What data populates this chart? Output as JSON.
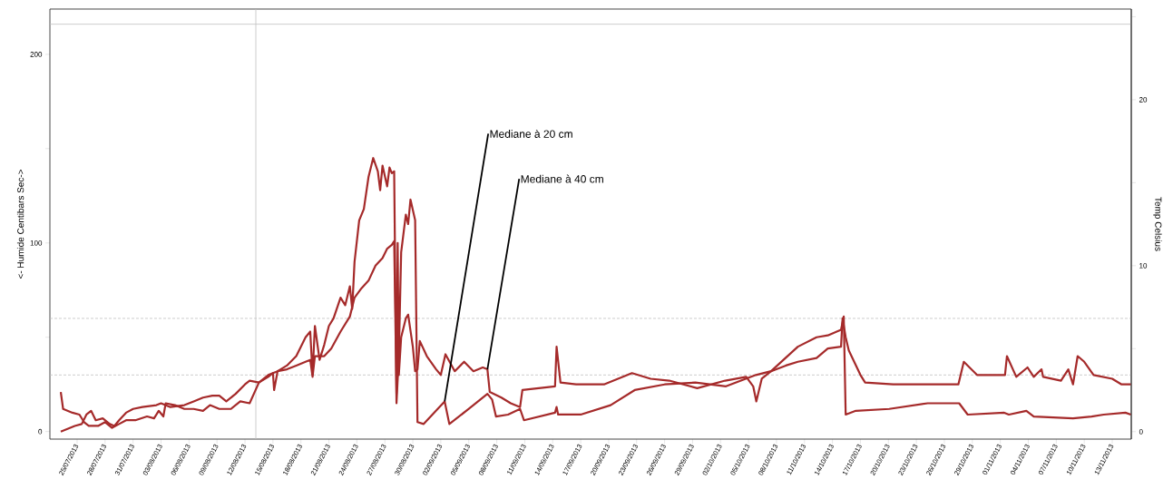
{
  "chart_data": {
    "type": "line",
    "ylabel": "<- Humide  Centibars  Sec->",
    "y2label": "Temp Celsius",
    "xlim": [
      "2013-07-22T02:00",
      "2013-11-15T01:00"
    ],
    "ylim": [
      -4,
      224
    ],
    "yticks": [
      0,
      {
        "value": 50,
        "label": null
      },
      100,
      {
        "value": 150,
        "label": null
      },
      200
    ],
    "y2lim": [
      -0.45,
      25.46
    ],
    "y2ticks": [
      0,
      {
        "value": 5,
        "label": null
      },
      10,
      {
        "value": 15,
        "label": null
      },
      20,
      {
        "value": 25,
        "label": null
      }
    ],
    "xticks": [
      {
        "value": "2013-07-25",
        "label": "25/07/2013"
      },
      {
        "value": "2013-07-28",
        "label": "28/07/2013"
      },
      {
        "value": "2013-07-31",
        "label": "31/07/2013"
      },
      {
        "value": "2013-08-03",
        "label": "03/08/2013"
      },
      {
        "value": "2013-08-06",
        "label": "06/08/2013"
      },
      {
        "value": "2013-08-09",
        "label": "09/08/2013"
      },
      {
        "value": "2013-08-12",
        "label": "12/08/2013"
      },
      {
        "value": "2013-08-15",
        "label": "15/08/2013"
      },
      {
        "value": "2013-08-18",
        "label": "18/08/2013"
      },
      {
        "value": "2013-08-21",
        "label": "21/08/2013"
      },
      {
        "value": "2013-08-24",
        "label": "24/08/2013"
      },
      {
        "value": "2013-08-27",
        "label": "27/08/2013"
      },
      {
        "value": "2013-08-30",
        "label": "30/08/2013"
      },
      {
        "value": "2013-09-02",
        "label": "02/09/2013"
      },
      {
        "value": "2013-09-05",
        "label": "05/09/2013"
      },
      {
        "value": "2013-09-08",
        "label": "08/09/2013"
      },
      {
        "value": "2013-09-11",
        "label": "11/09/2013"
      },
      {
        "value": "2013-09-14",
        "label": "14/09/2013"
      },
      {
        "value": "2013-09-17",
        "label": "17/09/2013"
      },
      {
        "value": "2013-09-20",
        "label": "20/09/2013"
      },
      {
        "value": "2013-09-23",
        "label": "23/09/2013"
      },
      {
        "value": "2013-09-26",
        "label": "26/09/2013"
      },
      {
        "value": "2013-09-29",
        "label": "29/09/2013"
      },
      {
        "value": "2013-10-02",
        "label": "02/10/2013"
      },
      {
        "value": "2013-10-05",
        "label": "05/10/2013"
      },
      {
        "value": "2013-10-08",
        "label": "08/10/2013"
      },
      {
        "value": "2013-10-11",
        "label": "11/10/2013"
      },
      {
        "value": "2013-10-14",
        "label": "14/10/2013"
      },
      {
        "value": "2013-10-17",
        "label": "17/10/2013"
      },
      {
        "value": "2013-10-20",
        "label": "20/10/2013"
      },
      {
        "value": "2013-10-23",
        "label": "23/10/2013"
      },
      {
        "value": "2013-10-26",
        "label": "26/10/2013"
      },
      {
        "value": "2013-10-29",
        "label": "29/10/2013"
      },
      {
        "value": "2013-11-01",
        "label": "01/11/2013"
      },
      {
        "value": "2013-11-04",
        "label": "04/11/2013"
      },
      {
        "value": "2013-11-07",
        "label": "07/11/2013"
      },
      {
        "value": "2013-11-10",
        "label": "10/11/2013"
      },
      {
        "value": "2013-11-13",
        "label": "13/11/2013"
      }
    ],
    "series": [
      {
        "color": "#a52a2a",
        "x": [
          "2013-07-23T06:00",
          "2013-07-24T18:00",
          "2013-07-25T12:00",
          "2013-07-26T00:00",
          "2013-07-26T12:00",
          "2013-07-27T00:00",
          "2013-07-27T18:00",
          "2013-07-28T12:00",
          "2013-07-29T00:00",
          "2013-07-29T12:00",
          "2013-07-30T06:00",
          "2013-07-31T00:00",
          "2013-08-01T00:00",
          "2013-08-02T12:00",
          "2013-08-03T00:00",
          "2013-08-04T00:00",
          "2013-08-05T12:00",
          "2013-08-06T12:00",
          "2013-08-07T12:00",
          "2013-08-08T12:00",
          "2013-08-09T06:00",
          "2013-08-10T00:00",
          "2013-08-11T00:00",
          "2013-08-12T00:00",
          "2013-08-12T12:00",
          "2013-08-13T12:00",
          "2013-08-14T12:00",
          "2013-08-15T12:00",
          "2013-08-16T12:00",
          "2013-08-17T12:00",
          "2013-08-18T12:00",
          "2013-08-19T00:00",
          "2013-08-19T06:00",
          "2013-08-19T12:00",
          "2013-08-20T00:00",
          "2013-08-20T12:00",
          "2013-08-21T00:00",
          "2013-08-21T12:00",
          "2013-08-22T06:00",
          "2013-08-22T18:00",
          "2013-08-23T06:00",
          "2013-08-23T12:00",
          "2013-08-23T18:00",
          "2013-08-24T06:00",
          "2013-08-24T18:00",
          "2013-08-25T06:00",
          "2013-08-25T18:00",
          "2013-08-26T06:00",
          "2013-08-26T12:00",
          "2013-08-26T18:00",
          "2013-08-27T06:00",
          "2013-08-27T12:00",
          "2013-08-27T18:00",
          "2013-08-28T00:00",
          "2013-08-28T06:00",
          "2013-08-28T12:00",
          "2013-08-28T18:00",
          "2013-08-29T06:00",
          "2013-08-29T12:00",
          "2013-08-29T18:00",
          "2013-08-30T06:00",
          "2013-08-30T12:00",
          "2013-08-31T04:00",
          "2013-09-02T10:00",
          "2013-09-02T22:00",
          "2013-09-05T00:00",
          "2013-09-07T00:00",
          "2013-09-07T12:00",
          "2013-09-07T22:00",
          "2013-09-09T05:00",
          "2013-09-10T12:00",
          "2013-09-10T22:00",
          "2013-09-14T06:00",
          "2013-09-14T10:00",
          "2013-09-14T14:00",
          "2013-09-17T00:00",
          "2013-09-20T05:00",
          "2013-09-22T19:00",
          "2013-09-26T00:00",
          "2013-09-29T07:00",
          "2013-10-02T14:00",
          "2013-10-05T19:00",
          "2013-10-07T10:00",
          "2013-10-10T07:00",
          "2013-10-12T07:00",
          "2013-10-13T12:00",
          "2013-10-14T22:00",
          "2013-10-15T05:00",
          "2013-10-15T10:00",
          "2013-10-16T12:00",
          "2013-10-20T02:00",
          "2013-10-24T05:00",
          "2013-10-27T14:00",
          "2013-10-28T12:00",
          "2013-11-01T10:00",
          "2013-11-01T22:00",
          "2013-11-03T19:00",
          "2013-11-04T14:00",
          "2013-11-08T19:00",
          "2013-11-10T19:00",
          "2013-11-12T02:00",
          "2013-11-14T10:00",
          "2013-11-15T00:00"
        ],
        "values": [
          0,
          3,
          4,
          9,
          11,
          6,
          7,
          4,
          3,
          6,
          10,
          12,
          13,
          14,
          15,
          13,
          14,
          16,
          18,
          19,
          19,
          16,
          20,
          25,
          27,
          26,
          30,
          32,
          35,
          40,
          50,
          53,
          30,
          56,
          38,
          46,
          56,
          60,
          71,
          67,
          77,
          65,
          90,
          112,
          118,
          135,
          145,
          138,
          128,
          141,
          130,
          140,
          137,
          138,
          15,
          40,
          95,
          115,
          110,
          123,
          112,
          5,
          4,
          16,
          4,
          12,
          20,
          17,
          8,
          9,
          12,
          6,
          10,
          13,
          9,
          9,
          14,
          22,
          25,
          26,
          24,
          30,
          32,
          45,
          50,
          51,
          54,
          61,
          9,
          11,
          12,
          15,
          15,
          9,
          10,
          9,
          11,
          8,
          7,
          8,
          9,
          10,
          9
        ]
      },
      {
        "color": "#a52a2a",
        "x": [
          "2013-07-23T06:00",
          "2013-07-23T12:00",
          "2013-07-24T12:00",
          "2013-07-25T06:00",
          "2013-07-25T18:00",
          "2013-07-26T06:00",
          "2013-07-27T06:00",
          "2013-07-28T00:00",
          "2013-07-28T18:00",
          "2013-07-29T12:00",
          "2013-07-30T06:00",
          "2013-07-31T06:00",
          "2013-08-01T12:00",
          "2013-08-02T06:00",
          "2013-08-02T18:00",
          "2013-08-03T06:00",
          "2013-08-03T12:00",
          "2013-08-04T12:00",
          "2013-08-05T12:00",
          "2013-08-06T12:00",
          "2013-08-07T12:00",
          "2013-08-08T06:00",
          "2013-08-09T06:00",
          "2013-08-10T12:00",
          "2013-08-11T12:00",
          "2013-08-12T12:00",
          "2013-08-13T12:00",
          "2013-08-14T12:00",
          "2013-08-15T00:00",
          "2013-08-15T03:00",
          "2013-08-15T12:00",
          "2013-08-16T12:00",
          "2013-08-17T12:00",
          "2013-08-18T12:00",
          "2013-08-19T00:00",
          "2013-08-19T06:00",
          "2013-08-19T12:00",
          "2013-08-20T12:00",
          "2013-08-21T06:00",
          "2013-08-22T06:00",
          "2013-08-23T06:00",
          "2013-08-23T18:00",
          "2013-08-24T12:00",
          "2013-08-25T06:00",
          "2013-08-26T00:00",
          "2013-08-26T18:00",
          "2013-08-27T06:00",
          "2013-08-27T18:00",
          "2013-08-28T00:00",
          "2013-08-28T06:00",
          "2013-08-28T09:00",
          "2013-08-28T12:00",
          "2013-08-28T18:00",
          "2013-08-29T06:00",
          "2013-08-29T12:00",
          "2013-08-30T00:00",
          "2013-08-30T06:00",
          "2013-08-30T12:00",
          "2013-08-30T18:00",
          "2013-08-31T12:00",
          "2013-09-01T12:00",
          "2013-09-02T00:00",
          "2013-09-02T12:00",
          "2013-09-03T12:00",
          "2013-09-04T12:00",
          "2013-09-05T12:00",
          "2013-09-06T12:00",
          "2013-09-07T00:00",
          "2013-09-07T06:00",
          "2013-09-08T12:00",
          "2013-09-09T12:00",
          "2013-09-10T12:00",
          "2013-09-10T18:00",
          "2013-09-12T12:00",
          "2013-09-14T06:00",
          "2013-09-14T10:00",
          "2013-09-14T20:00",
          "2013-09-16T12:00",
          "2013-09-19T12:00",
          "2013-09-22T12:00",
          "2013-09-24T12:00",
          "2013-09-26T12:00",
          "2013-09-29T12:00",
          "2013-10-02T12:00",
          "2013-10-04T18:00",
          "2013-10-05T12:00",
          "2013-10-05T20:00",
          "2013-10-06T10:00",
          "2013-10-07T10:00",
          "2013-10-09T00:00",
          "2013-10-10T07:00",
          "2013-10-12T07:00",
          "2013-10-13T12:00",
          "2013-10-14T22:00",
          "2013-10-15T02:00",
          "2013-10-15T10:00",
          "2013-10-15T18:00",
          "2013-10-17T00:00",
          "2013-10-17T12:00",
          "2013-10-20T12:00",
          "2013-10-27T12:00",
          "2013-10-28T02:00",
          "2013-10-29T12:00",
          "2013-11-01T12:00",
          "2013-11-01T17:00",
          "2013-11-02T17:00",
          "2013-11-03T22:00",
          "2013-11-04T14:00",
          "2013-11-05T10:00",
          "2013-11-05T14:00",
          "2013-11-07T12:00",
          "2013-11-08T07:00",
          "2013-11-08T19:00",
          "2013-11-09T07:00",
          "2013-11-10T00:00",
          "2013-11-11T00:00",
          "2013-11-13T00:00",
          "2013-11-14T00:00",
          "2013-11-15T00:00"
        ],
        "values": [
          21,
          12,
          10,
          9,
          5,
          3,
          3,
          5,
          2,
          4,
          6,
          6,
          8,
          7,
          11,
          8,
          15,
          14,
          12,
          12,
          11,
          14,
          12,
          12,
          16,
          15,
          26,
          29,
          31,
          22,
          32,
          33,
          35,
          37,
          38,
          29,
          40,
          40,
          44,
          53,
          61,
          71,
          76,
          80,
          88,
          92,
          97,
          99,
          101,
          20,
          100,
          30,
          50,
          60,
          62,
          45,
          32,
          33,
          48,
          40,
          33,
          30,
          41,
          32,
          37,
          32,
          34,
          33,
          21,
          18,
          15,
          13,
          22,
          23,
          24,
          45,
          26,
          25,
          25,
          31,
          28,
          27,
          23,
          27,
          29,
          24,
          16,
          28,
          32,
          35,
          37,
          39,
          44,
          45,
          60,
          50,
          43,
          30,
          26,
          25,
          25,
          37,
          30,
          30,
          40,
          29,
          34,
          29,
          33,
          29,
          27,
          33,
          25,
          40,
          37,
          30,
          28,
          25,
          25
        ]
      }
    ],
    "ref_lines": [
      {
        "axis": "y",
        "value": 216,
        "color": "#c0c0c0",
        "line_style": "solid"
      },
      {
        "axis": "y",
        "value": 60,
        "color": "#c0c0c0",
        "line_style": "dashed"
      },
      {
        "axis": "y",
        "value": 30,
        "color": "#c0c0c0",
        "line_style": "dashed"
      },
      {
        "axis": "x",
        "value": "2013-08-13T04:00",
        "color": "#c0c0c0",
        "line_style": "solid"
      }
    ],
    "annotations": [
      {
        "text": "Mediane à 20 cm",
        "x": "2013-09-02T10:00",
        "y": 16
      },
      {
        "text": "Mediane à 40 cm",
        "x": "2013-09-07T00:00",
        "y": 33
      }
    ]
  }
}
